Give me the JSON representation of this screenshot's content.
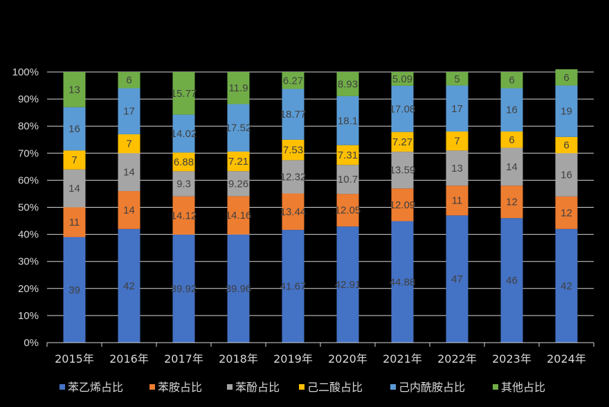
{
  "chart_data": {
    "type": "bar",
    "stacked": true,
    "categories": [
      "2015年",
      "2016年",
      "2017年",
      "2018年",
      "2019年",
      "2020年",
      "2021年",
      "2022年",
      "2023年",
      "2024年"
    ],
    "yticks": [
      "0%",
      "10%",
      "20%",
      "30%",
      "40%",
      "50%",
      "60%",
      "70%",
      "80%",
      "90%",
      "100%"
    ],
    "ylim": [
      0,
      100
    ],
    "grid": true,
    "legend_position": "bottom",
    "series": [
      {
        "name": "苯乙烯占比",
        "color": "#4472c4",
        "values": [
          39,
          42,
          39.92,
          39.96,
          41.67,
          42.91,
          44.88,
          47,
          46,
          42
        ]
      },
      {
        "name": "苯胺占比",
        "color": "#ed7d31",
        "values": [
          11,
          14,
          14.12,
          14.16,
          13.44,
          12.05,
          12.09,
          11,
          12,
          12
        ]
      },
      {
        "name": "苯酚占比",
        "color": "#a5a5a5",
        "values": [
          14,
          14,
          9.3,
          9.26,
          12.32,
          10.7,
          13.59,
          13,
          14,
          16
        ]
      },
      {
        "name": "己二酸占比",
        "color": "#ffc000",
        "values": [
          7,
          7,
          6.88,
          7.21,
          7.53,
          7.31,
          7.27,
          7,
          6,
          6
        ]
      },
      {
        "name": "己内酰胺占比",
        "color": "#5b9bd5",
        "values": [
          16,
          17,
          14.02,
          17.52,
          18.77,
          18.1,
          17.08,
          17,
          16,
          19
        ]
      },
      {
        "name": "其他占比",
        "color": "#70ad47",
        "values": [
          13,
          6,
          15.77,
          11.9,
          6.27,
          8.93,
          5.09,
          5,
          6,
          6
        ]
      }
    ]
  }
}
